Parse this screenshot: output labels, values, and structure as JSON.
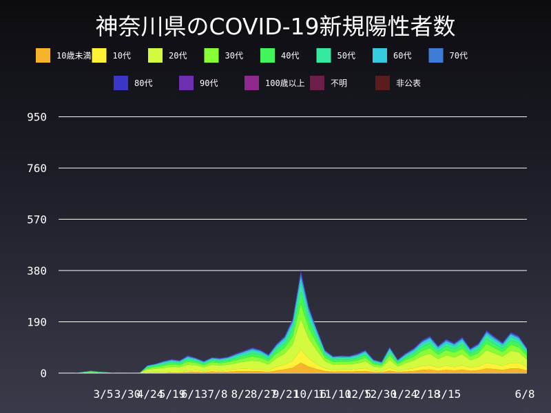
{
  "chart_data": {
    "type": "area",
    "stacked": true,
    "title": "神奈川県のCOVID-19新規陽性者数",
    "xlabel": "",
    "ylabel": "",
    "ylim": [
      0,
      1000
    ],
    "y_ticks": [
      0,
      190,
      380,
      570,
      760,
      950
    ],
    "x_tick_labels": [
      "3/5",
      "3/30",
      "4/24",
      "5/19",
      "6/13",
      "7/8",
      "8/2",
      "8/27",
      "9/21",
      "10/16",
      "11/10",
      "12/5",
      "12/30",
      "1/24",
      "2/18",
      "3/15",
      "6/8"
    ],
    "grid": true,
    "legend_position": "top",
    "series": [
      {
        "name": "10歳未満",
        "color": "#f6b42d",
        "values": [
          0,
          0,
          0,
          0,
          0,
          0,
          0,
          0,
          0,
          0,
          0,
          1,
          1,
          1,
          2,
          2,
          4,
          5,
          3,
          6,
          4,
          5,
          7,
          7,
          7,
          7,
          4,
          10,
          14,
          20,
          39,
          24,
          15,
          8,
          5,
          6,
          6,
          7,
          8,
          4,
          3,
          9,
          4,
          6,
          8,
          12,
          13,
          9,
          12,
          10,
          13,
          9,
          11,
          17,
          15,
          12,
          17,
          17,
          10
        ]
      },
      {
        "name": "10代",
        "color": "#fef236",
        "values": [
          0,
          0,
          0,
          0,
          0,
          0,
          0,
          0,
          0,
          0,
          0,
          2,
          2,
          2,
          3,
          3,
          5,
          6,
          4,
          7,
          5,
          6,
          8,
          9,
          8,
          8,
          5,
          13,
          17,
          25,
          48,
          29,
          17,
          9,
          6,
          7,
          7,
          8,
          10,
          5,
          4,
          11,
          5,
          7,
          10,
          14,
          16,
          11,
          15,
          12,
          16,
          11,
          13,
          21,
          18,
          14,
          21,
          21,
          12
        ]
      },
      {
        "name": "20代",
        "color": "#d4fa40",
        "values": [
          0,
          0,
          0,
          1,
          2,
          1,
          1,
          0,
          0,
          1,
          0,
          10,
          13,
          16,
          19,
          17,
          22,
          18,
          15,
          18,
          19,
          20,
          22,
          26,
          31,
          28,
          23,
          33,
          41,
          61,
          114,
          75,
          51,
          27,
          20,
          20,
          19,
          21,
          26,
          16,
          14,
          30,
          16,
          24,
          29,
          37,
          43,
          32,
          39,
          36,
          41,
          28,
          34,
          47,
          40,
          35,
          45,
          39,
          28
        ]
      },
      {
        "name": "30代",
        "color": "#86fd34",
        "values": [
          0,
          0,
          0,
          1,
          2,
          1,
          1,
          0,
          0,
          0,
          0,
          5,
          6,
          8,
          9,
          8,
          11,
          9,
          7,
          9,
          9,
          10,
          11,
          13,
          16,
          14,
          12,
          17,
          21,
          31,
          57,
          38,
          26,
          13,
          10,
          10,
          10,
          11,
          13,
          8,
          7,
          15,
          8,
          12,
          15,
          19,
          21,
          16,
          19,
          18,
          20,
          14,
          17,
          24,
          20,
          17,
          22,
          19,
          14
        ]
      },
      {
        "name": "40代",
        "color": "#41f55a",
        "values": [
          0,
          0,
          0,
          1,
          2,
          1,
          1,
          0,
          0,
          0,
          0,
          4,
          5,
          6,
          7,
          6,
          8,
          7,
          6,
          7,
          7,
          7,
          9,
          10,
          12,
          11,
          9,
          13,
          16,
          24,
          44,
          29,
          20,
          10,
          8,
          8,
          8,
          9,
          10,
          6,
          5,
          11,
          6,
          9,
          11,
          14,
          16,
          12,
          15,
          13,
          16,
          11,
          13,
          18,
          15,
          13,
          17,
          15,
          11
        ]
      },
      {
        "name": "50代",
        "color": "#35eaa0",
        "values": [
          0,
          0,
          0,
          1,
          1,
          1,
          0,
          0,
          0,
          0,
          0,
          3,
          4,
          5,
          5,
          5,
          6,
          5,
          4,
          5,
          5,
          6,
          7,
          8,
          9,
          8,
          7,
          10,
          12,
          18,
          34,
          22,
          15,
          8,
          6,
          6,
          6,
          7,
          8,
          5,
          4,
          9,
          5,
          7,
          8,
          11,
          12,
          9,
          11,
          10,
          12,
          8,
          10,
          14,
          12,
          10,
          13,
          11,
          8
        ]
      },
      {
        "name": "60代",
        "color": "#33cbdd",
        "values": [
          0,
          0,
          0,
          0,
          1,
          1,
          0,
          0,
          0,
          0,
          0,
          2,
          2,
          3,
          3,
          3,
          4,
          3,
          2,
          3,
          3,
          3,
          4,
          5,
          5,
          5,
          4,
          6,
          8,
          11,
          21,
          14,
          9,
          5,
          4,
          4,
          4,
          4,
          5,
          3,
          2,
          6,
          3,
          4,
          5,
          7,
          8,
          6,
          7,
          6,
          7,
          5,
          6,
          8,
          7,
          6,
          8,
          7,
          5
        ]
      },
      {
        "name": "70代",
        "color": "#3e7bd6",
        "values": [
          0,
          0,
          0,
          0,
          1,
          0,
          0,
          0,
          0,
          0,
          0,
          1,
          1,
          2,
          2,
          2,
          3,
          2,
          2,
          2,
          2,
          2,
          3,
          3,
          4,
          3,
          3,
          4,
          5,
          7,
          14,
          9,
          6,
          3,
          2,
          2,
          2,
          3,
          3,
          2,
          2,
          4,
          2,
          3,
          4,
          4,
          5,
          4,
          5,
          4,
          5,
          3,
          4,
          6,
          5,
          4,
          5,
          5,
          3
        ]
      },
      {
        "name": "80代",
        "color": "#3a36c9",
        "values": [
          0,
          0,
          0,
          0,
          0,
          0,
          0,
          0,
          0,
          0,
          0,
          1,
          1,
          1,
          1,
          1,
          2,
          1,
          1,
          1,
          1,
          1,
          2,
          2,
          2,
          2,
          2,
          2,
          3,
          4,
          8,
          5,
          3,
          2,
          1,
          1,
          1,
          2,
          2,
          1,
          1,
          2,
          1,
          2,
          2,
          3,
          3,
          2,
          3,
          2,
          3,
          2,
          2,
          3,
          3,
          2,
          3,
          3,
          2
        ]
      },
      {
        "name": "90代",
        "color": "#6c2fb0",
        "values": [
          0,
          0,
          0,
          0,
          0,
          0,
          0,
          0,
          0,
          0,
          0,
          0,
          0,
          1,
          1,
          1,
          1,
          1,
          1,
          1,
          1,
          1,
          1,
          1,
          1,
          1,
          1,
          1,
          1,
          2,
          4,
          2,
          2,
          1,
          1,
          1,
          1,
          1,
          1,
          1,
          0,
          1,
          1,
          1,
          1,
          1,
          1,
          1,
          1,
          1,
          1,
          1,
          1,
          1,
          1,
          1,
          1,
          1,
          1
        ]
      },
      {
        "name": "100歳以上",
        "color": "#8e2a8e",
        "values": [
          0,
          0,
          0,
          0,
          0,
          0,
          0,
          0,
          0,
          0,
          0,
          0,
          0,
          0,
          0,
          0,
          0,
          0,
          0,
          0,
          0,
          0,
          0,
          0,
          0,
          0,
          0,
          0,
          0,
          0,
          0,
          0,
          0,
          0,
          0,
          0,
          0,
          0,
          0,
          0,
          0,
          0,
          0,
          0,
          0,
          0,
          0,
          0,
          0,
          0,
          0,
          0,
          0,
          0,
          0,
          0,
          0,
          0,
          0
        ]
      },
      {
        "name": "不明",
        "color": "#6b1f4a",
        "values": [
          0,
          0,
          0,
          0,
          0,
          0,
          0,
          0,
          0,
          0,
          0,
          0,
          0,
          0,
          0,
          0,
          0,
          0,
          0,
          0,
          0,
          0,
          0,
          0,
          0,
          0,
          0,
          0,
          0,
          0,
          0,
          0,
          0,
          0,
          0,
          0,
          0,
          0,
          0,
          0,
          0,
          0,
          0,
          0,
          0,
          0,
          0,
          0,
          0,
          0,
          0,
          0,
          0,
          0,
          0,
          0,
          0,
          0,
          0
        ]
      },
      {
        "name": "非公表",
        "color": "#5a1c1c",
        "values": [
          0,
          0,
          0,
          0,
          0,
          0,
          0,
          0,
          0,
          0,
          0,
          0,
          0,
          0,
          0,
          0,
          0,
          0,
          0,
          0,
          0,
          0,
          0,
          0,
          0,
          0,
          0,
          0,
          0,
          0,
          0,
          0,
          0,
          0,
          0,
          0,
          0,
          0,
          0,
          0,
          0,
          0,
          0,
          0,
          0,
          0,
          0,
          0,
          0,
          0,
          0,
          0,
          0,
          0,
          0,
          0,
          0,
          0,
          0
        ]
      }
    ]
  }
}
